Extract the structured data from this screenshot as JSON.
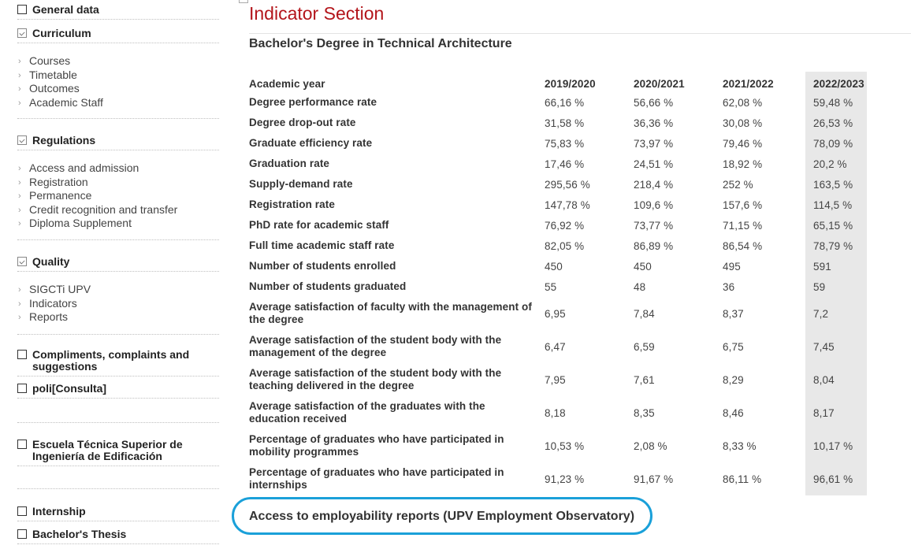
{
  "sidebar": {
    "general_data": "General data",
    "curriculum": "Curriculum",
    "curriculum_items": [
      "Courses",
      "Timetable",
      "Outcomes",
      "Academic Staff"
    ],
    "regulations": "Regulations",
    "regulations_items": [
      "Access and admission",
      "Registration",
      "Permanence",
      "Credit recognition and transfer",
      "Diploma Supplement"
    ],
    "quality": "Quality",
    "quality_items": [
      "SIGCTi UPV",
      "Indicators",
      "Reports"
    ],
    "compliments": "Compliments, complaints and suggestions",
    "policonsulta": "poli[Consulta]",
    "school": "Escuela Técnica Superior de Ingeniería de Edificación",
    "internship": "Internship",
    "thesis": "Bachelor's Thesis"
  },
  "main": {
    "page_title": "Indicator Section",
    "degree_title": "Bachelor's Degree in Technical Architecture",
    "employability_link": "Access to employability reports (UPV Employment Observatory)"
  },
  "indicators": {
    "header": [
      "Academic year",
      "2019/2020",
      "2020/2021",
      "2021/2022",
      "2022/2023"
    ],
    "rows": [
      [
        "Degree performance rate",
        "66,16 %",
        "56,66 %",
        "62,08 %",
        "59,48 %"
      ],
      [
        "Degree drop-out rate",
        "31,58 %",
        "36,36 %",
        "30,08 %",
        "26,53 %"
      ],
      [
        "Graduate efficiency rate",
        "75,83 %",
        "73,97 %",
        "79,46 %",
        "78,09 %"
      ],
      [
        "Graduation rate",
        "17,46 %",
        "24,51 %",
        "18,92 %",
        "20,2 %"
      ],
      [
        "Supply-demand rate",
        "295,56 %",
        "218,4 %",
        "252 %",
        "163,5 %"
      ],
      [
        "Registration rate",
        "147,78 %",
        "109,6 %",
        "157,6 %",
        "114,5 %"
      ],
      [
        "PhD rate for academic staff",
        "76,92 %",
        "73,77 %",
        "71,15 %",
        "65,15 %"
      ],
      [
        "Full time academic staff rate",
        "82,05 %",
        "86,89 %",
        "86,54 %",
        "78,79 %"
      ],
      [
        "Number of students enrolled",
        "450",
        "450",
        "495",
        "591"
      ],
      [
        "Number of students graduated",
        "55",
        "48",
        "36",
        "59"
      ],
      [
        "Average satisfaction of faculty with the management of the degree",
        "6,95",
        "7,84",
        "8,37",
        "7,2"
      ],
      [
        "Average satisfaction of the student body with the management of the degree",
        "6,47",
        "6,59",
        "6,75",
        "7,45"
      ],
      [
        "Average satisfaction of the student body with the teaching delivered in the degree",
        "7,95",
        "7,61",
        "8,29",
        "8,04"
      ],
      [
        "Average satisfaction of the graduates with the education received",
        "8,18",
        "8,35",
        "8,46",
        "8,17"
      ],
      [
        "Percentage of graduates who have participated in mobility programmes",
        "10,53 %",
        "2,08 %",
        "8,33 %",
        "10,17 %"
      ],
      [
        "Percentage of graduates who have participated in internships",
        "91,23 %",
        "91,67 %",
        "86,11 %",
        "96,61 %"
      ]
    ]
  }
}
